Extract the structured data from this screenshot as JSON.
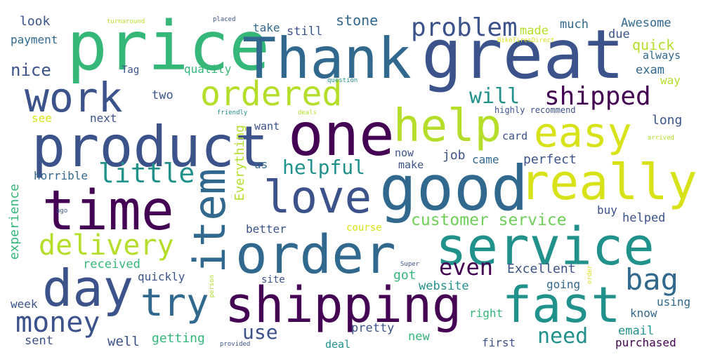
{
  "palette": {
    "dark-purple": "#440154",
    "indigo": "#3b528b",
    "blue": "#31688e",
    "teal": "#21918c",
    "green": "#35b779",
    "light-green": "#6ece58",
    "yellow-green": "#b5de2b",
    "yellow": "#d8e219"
  },
  "words": [
    "great",
    "price",
    "Thank",
    "product",
    "one",
    "good",
    "service",
    "order",
    "shipping",
    "really",
    "time",
    "love",
    "day",
    "fast",
    "easy",
    "help",
    "work",
    "item",
    "ordered",
    "try",
    "problem",
    "shipped",
    "money",
    "delivery",
    "little",
    "bag",
    "even",
    "helpful",
    "will",
    "customer service",
    "use",
    "need",
    "Excellent",
    "website",
    "quick",
    "Everything",
    "experience",
    "payment",
    "look",
    "nice",
    "Tag",
    "quality",
    "take",
    "still",
    "stone",
    "made",
    "much",
    "Awesome",
    "due",
    "always",
    "exam",
    "way",
    "two",
    "next",
    "see",
    "want",
    "highly recommend",
    "long",
    "card",
    "now",
    "job",
    "came",
    "perfect",
    "make",
    "us",
    "horrible",
    "buy",
    "helped",
    "better",
    "course",
    "received",
    "quickly",
    "site",
    "got",
    "going",
    "week",
    "well",
    "getting",
    "pretty",
    "right",
    "using",
    "know",
    "email",
    "sent",
    "deal",
    "new",
    "first",
    "purchased",
    "turnaround",
    "placed",
    "BikeTiresDirect",
    "question",
    "friendly",
    "deals",
    "arrived",
    "ago",
    "Super",
    "person",
    "provided",
    "order"
  ]
}
